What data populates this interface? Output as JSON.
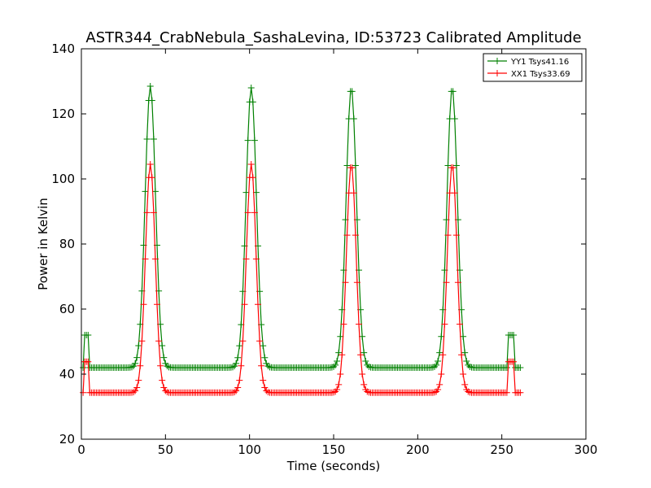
{
  "chart_data": {
    "type": "line",
    "title": "ASTR344_CrabNebula_SashaLevina, ID:53723 Calibrated Amplitude",
    "xlabel": "Time (seconds)",
    "ylabel": "Power in Kelvin",
    "xlim": [
      0,
      300
    ],
    "ylim": [
      20,
      140
    ],
    "xticks": [
      0,
      50,
      100,
      150,
      200,
      250,
      300
    ],
    "yticks": [
      20,
      40,
      60,
      80,
      100,
      120,
      140
    ],
    "grid": false,
    "legend_position": "top-right",
    "series": [
      {
        "name": "YY1 Tsys41.16",
        "color": "#008000",
        "marker": "plus",
        "baseline": 42,
        "cal_high": 52,
        "cal_windows": [
          [
            2,
            4
          ],
          [
            254,
            257
          ]
        ],
        "start": 1,
        "stop": 261,
        "peaks": [
          {
            "center": 41,
            "peak": 128.5,
            "sigma": 3.1
          },
          {
            "center": 101,
            "peak": 128,
            "sigma": 3.1
          },
          {
            "center": 160.5,
            "peak": 128,
            "sigma": 3.1
          },
          {
            "center": 220.5,
            "peak": 128,
            "sigma": 3.1
          }
        ]
      },
      {
        "name": "XX1 Tsys33.69",
        "color": "#ff0000",
        "marker": "plus",
        "baseline": 34.3,
        "cal_high": 43.8,
        "cal_windows": [
          [
            2,
            4
          ],
          [
            254,
            257
          ]
        ],
        "start": 1,
        "stop": 261,
        "peaks": [
          {
            "center": 41,
            "peak": 104.5,
            "sigma": 2.9
          },
          {
            "center": 101,
            "peak": 104.5,
            "sigma": 2.9
          },
          {
            "center": 160.5,
            "peak": 104.5,
            "sigma": 2.9
          },
          {
            "center": 220.5,
            "peak": 104.5,
            "sigma": 2.9
          }
        ]
      }
    ]
  }
}
